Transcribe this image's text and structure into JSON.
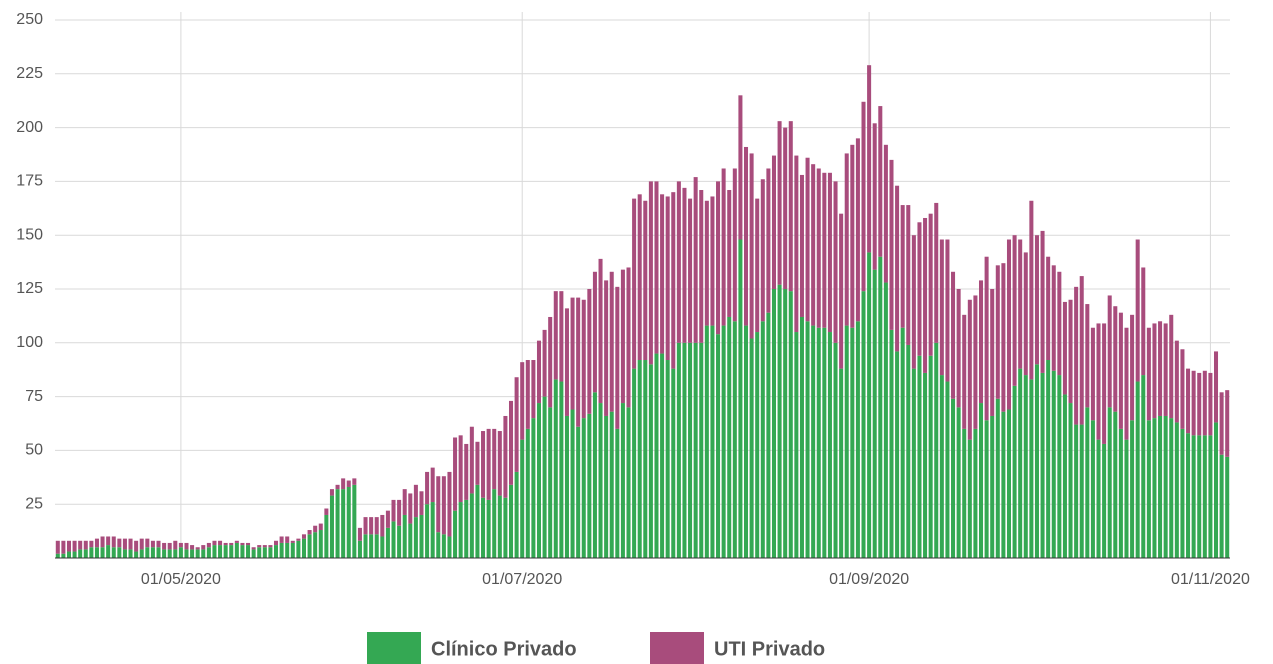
{
  "chart_data": {
    "type": "bar",
    "stacked": true,
    "categories": [
      null,
      null,
      null,
      null,
      null,
      null,
      null,
      null,
      null,
      null,
      null,
      null,
      null,
      null,
      null,
      null,
      null,
      null,
      null,
      null,
      null,
      null,
      "01/05/2020",
      null,
      null,
      null,
      null,
      null,
      null,
      null,
      null,
      null,
      null,
      null,
      null,
      null,
      null,
      null,
      null,
      null,
      null,
      null,
      null,
      null,
      null,
      null,
      null,
      null,
      null,
      null,
      null,
      null,
      null,
      null,
      null,
      null,
      null,
      null,
      null,
      null,
      null,
      null,
      null,
      null,
      null,
      null,
      null,
      null,
      null,
      null,
      null,
      null,
      null,
      null,
      null,
      null,
      null,
      null,
      null,
      null,
      null,
      null,
      null,
      "01/07/2020",
      null,
      null,
      null,
      null,
      null,
      null,
      null,
      null,
      null,
      null,
      null,
      null,
      null,
      null,
      null,
      null,
      null,
      null,
      null,
      null,
      null,
      null,
      null,
      null,
      null,
      null,
      null,
      null,
      null,
      null,
      null,
      null,
      null,
      null,
      null,
      null,
      null,
      null,
      null,
      null,
      null,
      null,
      null,
      null,
      null,
      null,
      null,
      null,
      null,
      null,
      null,
      null,
      null,
      null,
      null,
      null,
      null,
      null,
      null,
      null,
      null,
      "01/09/2020",
      null,
      null,
      null,
      null,
      null,
      null,
      null,
      null,
      null,
      null,
      null,
      null,
      null,
      null,
      null,
      null,
      null,
      null,
      null,
      null,
      null,
      null,
      null,
      null,
      null,
      null,
      null,
      null,
      null,
      null,
      null,
      null,
      null,
      null,
      null,
      null,
      null,
      null,
      null,
      null,
      null,
      null,
      null,
      null,
      null,
      null,
      null,
      null,
      null,
      null,
      null,
      null,
      null,
      null,
      null,
      null,
      null,
      null,
      null,
      null,
      "01/11/2020",
      null,
      null,
      null
    ],
    "series": [
      {
        "name": "Clínico Privado",
        "color": "#34a853",
        "values": [
          2,
          2,
          3,
          3,
          4,
          4,
          5,
          5,
          5,
          6,
          5,
          5,
          4,
          4,
          3,
          4,
          5,
          5,
          5,
          4,
          4,
          4,
          5,
          4,
          4,
          4,
          4,
          5,
          6,
          6,
          6,
          6,
          7,
          6,
          6,
          4,
          5,
          5,
          5,
          6,
          7,
          7,
          7,
          8,
          9,
          11,
          12,
          13,
          20,
          29,
          32,
          32,
          33,
          34,
          8,
          11,
          11,
          11,
          10,
          14,
          17,
          15,
          20,
          16,
          19,
          20,
          25,
          26,
          12,
          11,
          10,
          22,
          26,
          27,
          30,
          34,
          28,
          27,
          32,
          29,
          28,
          34,
          40,
          55,
          60,
          65,
          72,
          75,
          70,
          83,
          82,
          66,
          69,
          61,
          65,
          67,
          77,
          72,
          66,
          68,
          60,
          72,
          70,
          88,
          92,
          92,
          90,
          95,
          95,
          92,
          88,
          100,
          100,
          100,
          100,
          100,
          108,
          108,
          104,
          108,
          112,
          110,
          148,
          108,
          102,
          105,
          110,
          114,
          125,
          127,
          125,
          124,
          105,
          112,
          110,
          108,
          107,
          107,
          105,
          100,
          88,
          108,
          107,
          110,
          124,
          142,
          134,
          140,
          128,
          106,
          96,
          107,
          99,
          88,
          94,
          86,
          94,
          100,
          85,
          82,
          74,
          70,
          60,
          55,
          60,
          72,
          64,
          66,
          74,
          68,
          69,
          80,
          88,
          85,
          83,
          90,
          86,
          92,
          87,
          85,
          76,
          72,
          62,
          62,
          70,
          64,
          55,
          53,
          70,
          68,
          60,
          55,
          64,
          82,
          85,
          64,
          65,
          66,
          66,
          65,
          63,
          60,
          58,
          57,
          57,
          57,
          57,
          63,
          48,
          47
        ]
      },
      {
        "name": "UTI Privado",
        "color": "#a84c7c",
        "values": [
          6,
          6,
          5,
          5,
          4,
          4,
          3,
          4,
          5,
          4,
          5,
          4,
          5,
          5,
          5,
          5,
          4,
          3,
          3,
          3,
          3,
          4,
          2,
          3,
          2,
          1,
          2,
          2,
          2,
          2,
          1,
          1,
          1,
          1,
          1,
          1,
          1,
          1,
          1,
          2,
          3,
          3,
          1,
          1,
          2,
          2,
          3,
          3,
          3,
          3,
          2,
          5,
          3,
          3,
          6,
          8,
          8,
          8,
          10,
          8,
          10,
          12,
          12,
          14,
          15,
          11,
          15,
          16,
          26,
          27,
          30,
          34,
          31,
          26,
          31,
          20,
          31,
          33,
          28,
          30,
          38,
          39,
          44,
          36,
          32,
          27,
          29,
          31,
          42,
          41,
          42,
          50,
          52,
          60,
          55,
          58,
          56,
          67,
          63,
          65,
          66,
          62,
          65,
          79,
          77,
          74,
          85,
          80,
          74,
          76,
          82,
          75,
          72,
          67,
          77,
          71,
          58,
          60,
          71,
          73,
          59,
          71,
          67,
          83,
          86,
          62,
          66,
          67,
          62,
          76,
          75,
          79,
          82,
          66,
          76,
          75,
          74,
          72,
          74,
          75,
          72,
          80,
          85,
          85,
          88,
          87,
          68,
          70,
          64,
          79,
          77,
          57,
          65,
          62,
          62,
          72,
          66,
          65,
          63,
          66,
          59,
          55,
          53,
          65,
          62,
          57,
          76,
          59,
          62,
          69,
          79,
          70,
          60,
          57,
          83,
          60,
          66,
          48,
          49,
          48,
          43,
          48,
          64,
          69,
          48,
          43,
          54,
          56,
          52,
          49,
          54,
          52,
          49,
          66,
          50,
          43,
          44,
          44,
          43,
          48,
          38,
          37,
          30,
          30,
          29,
          30,
          29,
          33,
          29,
          31
        ]
      }
    ],
    "ylim": [
      0,
      250
    ],
    "yticks": [
      25,
      50,
      75,
      100,
      125,
      150,
      175,
      200,
      225,
      250
    ],
    "grid": true,
    "legend": "bottom"
  }
}
